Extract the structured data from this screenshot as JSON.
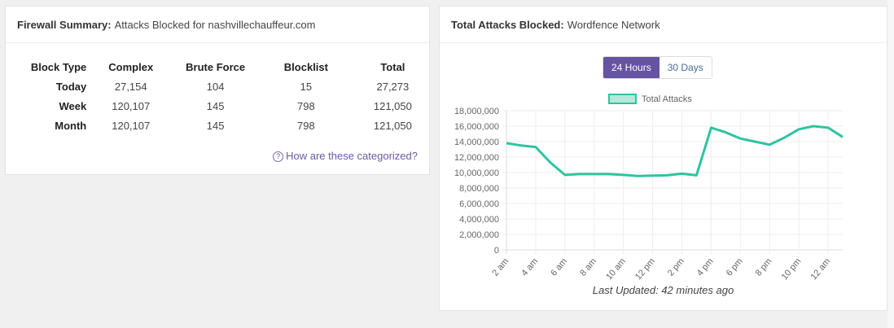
{
  "firewall": {
    "title_bold": "Firewall Summary:",
    "title_rest": "Attacks Blocked for nashvillechauffeur.com",
    "columns": [
      "Block Type",
      "Complex",
      "Brute Force",
      "Blocklist",
      "Total"
    ],
    "rows": [
      [
        "Today",
        "27,154",
        "104",
        "15",
        "27,273"
      ],
      [
        "Week",
        "120,107",
        "145",
        "798",
        "121,050"
      ],
      [
        "Month",
        "120,107",
        "145",
        "798",
        "121,050"
      ]
    ],
    "help_link": "How are these categorized?",
    "help_icon": "?"
  },
  "network": {
    "title_bold": "Total Attacks Blocked:",
    "title_rest": "Wordfence Network",
    "tabs": [
      "24 Hours",
      "30 Days"
    ],
    "active_tab": "24 Hours",
    "last_updated": "Last Updated: 42 minutes ago"
  },
  "colors": {
    "line": "#2ec4a0",
    "accent": "#6753a3"
  },
  "chart_data": {
    "type": "line",
    "legend": "Total Attacks",
    "legend_position": "top",
    "x_ticks": [
      "2 am",
      "4 am",
      "6 am",
      "8 am",
      "10 am",
      "12 pm",
      "2 pm",
      "4 pm",
      "6 pm",
      "8 pm",
      "10 pm",
      "12 am"
    ],
    "y_ticks": [
      "0",
      "2,000,000",
      "4,000,000",
      "6,000,000",
      "8,000,000",
      "10,000,000",
      "12,000,000",
      "14,000,000",
      "16,000,000",
      "18,000,000"
    ],
    "ylim": [
      0,
      18000000
    ],
    "grid": true,
    "x": [
      "2 am",
      "3 am",
      "4 am",
      "5 am",
      "6 am",
      "7 am",
      "8 am",
      "9 am",
      "10 am",
      "11 am",
      "12 pm",
      "1 pm",
      "2 pm",
      "3 pm",
      "4 pm",
      "5 pm",
      "6 pm",
      "7 pm",
      "8 pm",
      "9 pm",
      "10 pm",
      "11 pm",
      "12 am",
      "1 am"
    ],
    "values": [
      13800000,
      13500000,
      13300000,
      11300000,
      9700000,
      9800000,
      9800000,
      9800000,
      9700000,
      9550000,
      9600000,
      9650000,
      9850000,
      9650000,
      15800000,
      15200000,
      14400000,
      14000000,
      13600000,
      14500000,
      15600000,
      16000000,
      15800000,
      14600000
    ]
  }
}
